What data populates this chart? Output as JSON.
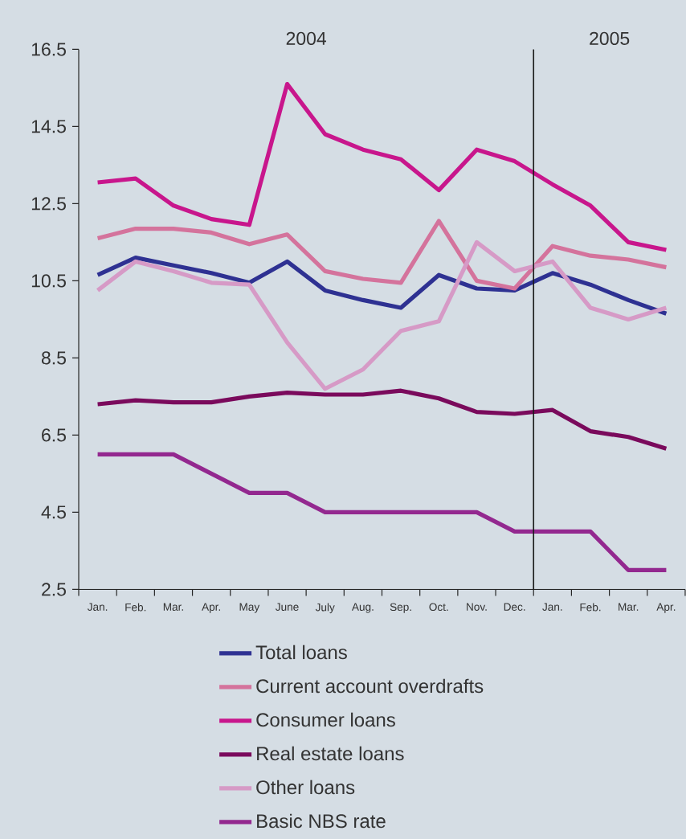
{
  "chart_data": {
    "type": "line",
    "categories": [
      "Jan.",
      "Feb.",
      "Mar.",
      "Apr.",
      "May",
      "June",
      "July",
      "Aug.",
      "Sep.",
      "Oct.",
      "Nov.",
      "Dec.",
      "Jan.",
      "Feb.",
      "Mar.",
      "Apr."
    ],
    "ylim": [
      2.5,
      16.5
    ],
    "yticks": [
      2.5,
      4.5,
      6.5,
      8.5,
      10.5,
      12.5,
      14.5,
      16.5
    ],
    "legend": "bottom",
    "line_style": "solid",
    "annotations": [
      "2004",
      "2005"
    ],
    "series": [
      {
        "name": "Total loans",
        "color": "#2e3192",
        "values": [
          10.65,
          11.1,
          10.9,
          10.7,
          10.45,
          11.0,
          10.25,
          10.0,
          9.8,
          10.65,
          10.3,
          10.25,
          10.7,
          10.4,
          10.0,
          9.65
        ]
      },
      {
        "name": "Current account overdrafts",
        "color": "#d4739c",
        "values": [
          11.6,
          11.85,
          11.85,
          11.75,
          11.45,
          11.7,
          10.75,
          10.55,
          10.45,
          12.05,
          10.5,
          10.3,
          11.4,
          11.15,
          11.05,
          10.85
        ]
      },
      {
        "name": "Consumer loans",
        "color": "#c8168c",
        "values": [
          13.05,
          13.15,
          12.45,
          12.1,
          11.95,
          15.6,
          14.3,
          13.9,
          13.65,
          12.85,
          13.9,
          13.6,
          13.0,
          12.45,
          11.5,
          11.3
        ]
      },
      {
        "name": "Real estate loans",
        "color": "#7a0a5c",
        "values": [
          7.3,
          7.4,
          7.35,
          7.35,
          7.5,
          7.6,
          7.55,
          7.55,
          7.65,
          7.45,
          7.1,
          7.05,
          7.15,
          6.6,
          6.45,
          6.15
        ]
      },
      {
        "name": "Other loans",
        "color": "#d69ac6",
        "values": [
          10.25,
          11.0,
          10.75,
          10.45,
          10.4,
          8.9,
          7.7,
          8.2,
          9.2,
          9.45,
          11.5,
          10.75,
          11.0,
          9.8,
          9.5,
          9.8
        ]
      },
      {
        "name": "Basic NBS rate",
        "color": "#93288f",
        "values": [
          6.0,
          6.0,
          6.0,
          5.5,
          5.0,
          5.0,
          4.5,
          4.5,
          4.5,
          4.5,
          4.5,
          4.0,
          4.0,
          4.0,
          3.0,
          3.0
        ]
      }
    ]
  }
}
